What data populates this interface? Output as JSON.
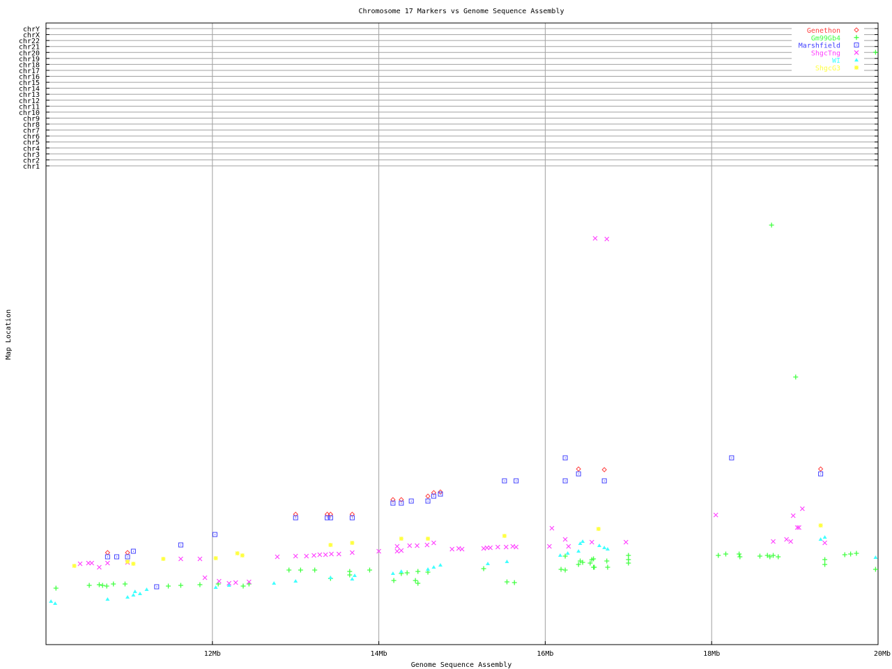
{
  "chart_data": {
    "type": "scatter",
    "title": "Chromosome 17 Markers vs Genome Sequence Assembly",
    "xlabel": "Genome Sequence Assembly",
    "ylabel": "Map Location",
    "xlim": [
      10,
      20
    ],
    "ylim": [
      0,
      892
    ],
    "xticks": [
      {
        "value": 12,
        "label": "12Mb"
      },
      {
        "value": 14,
        "label": "14Mb"
      },
      {
        "value": 16,
        "label": "16Mb"
      },
      {
        "value": 18,
        "label": "18Mb"
      },
      {
        "value": 20,
        "label": "20Mb"
      }
    ],
    "ytick_labels": [
      "chr1",
      "chr2",
      "chr3",
      "chr4",
      "chr5",
      "chr6",
      "chr7",
      "chr8",
      "chr9",
      "chr10",
      "chr11",
      "chr12",
      "chr13",
      "chr14",
      "chr15",
      "chr16",
      "chr17",
      "chr18",
      "chr19",
      "chr20",
      "chr21",
      "chr22",
      "chrX",
      "chrY"
    ],
    "grid": true,
    "legend_position": "top-right",
    "series": [
      {
        "name": "Genethon",
        "color": "#ff4040",
        "marker": "diamond",
        "points": [
          [
            10.74,
            132
          ],
          [
            10.98,
            132
          ],
          [
            13.0,
            187
          ],
          [
            13.38,
            187
          ],
          [
            13.42,
            187
          ],
          [
            13.68,
            187
          ],
          [
            14.17,
            208
          ],
          [
            14.27,
            208
          ],
          [
            14.59,
            213
          ],
          [
            14.66,
            218
          ],
          [
            14.74,
            219
          ],
          [
            16.4,
            252
          ],
          [
            16.71,
            251
          ],
          [
            19.31,
            252
          ]
        ]
      },
      {
        "name": "Gm99Gb4",
        "color": "#40ff40",
        "marker": "plus",
        "points": [
          [
            10.12,
            81
          ],
          [
            10.52,
            85
          ],
          [
            10.64,
            86
          ],
          [
            10.68,
            85
          ],
          [
            10.73,
            84
          ],
          [
            10.81,
            87
          ],
          [
            10.95,
            87
          ],
          [
            11.47,
            84
          ],
          [
            11.62,
            85
          ],
          [
            11.85,
            86
          ],
          [
            12.07,
            87
          ],
          [
            12.37,
            84
          ],
          [
            12.44,
            87
          ],
          [
            12.92,
            107
          ],
          [
            13.06,
            107
          ],
          [
            13.23,
            107
          ],
          [
            13.42,
            95
          ],
          [
            13.65,
            105
          ],
          [
            13.65,
            100
          ],
          [
            13.89,
            107
          ],
          [
            14.18,
            92
          ],
          [
            14.27,
            102
          ],
          [
            14.34,
            103
          ],
          [
            14.47,
            105
          ],
          [
            14.59,
            104
          ],
          [
            14.44,
            92
          ],
          [
            14.47,
            88
          ],
          [
            15.26,
            109
          ],
          [
            15.54,
            90
          ],
          [
            15.63,
            89
          ],
          [
            16.24,
            127
          ],
          [
            16.42,
            120
          ],
          [
            16.45,
            118
          ],
          [
            16.4,
            115
          ],
          [
            16.54,
            117
          ],
          [
            16.56,
            122
          ],
          [
            16.58,
            123
          ],
          [
            16.74,
            120
          ],
          [
            16.58,
            111
          ],
          [
            16.59,
            111
          ],
          [
            16.75,
            111
          ],
          [
            16.19,
            108
          ],
          [
            16.24,
            107
          ],
          [
            17.0,
            128
          ],
          [
            17.0,
            122
          ],
          [
            17.0,
            117
          ],
          [
            18.08,
            128
          ],
          [
            18.17,
            130
          ],
          [
            18.33,
            130
          ],
          [
            18.34,
            126
          ],
          [
            18.58,
            127
          ],
          [
            18.67,
            128
          ],
          [
            18.7,
            126
          ],
          [
            18.74,
            128
          ],
          [
            18.8,
            126
          ],
          [
            19.36,
            122
          ],
          [
            19.36,
            115
          ],
          [
            19.6,
            129
          ],
          [
            19.67,
            130
          ],
          [
            19.74,
            131
          ],
          [
            19.97,
            108
          ],
          [
            18.72,
            602
          ],
          [
            19.01,
            384
          ],
          [
            19.97,
            850
          ]
        ]
      },
      {
        "name": "Marshfield",
        "color": "#4040ff",
        "marker": "square",
        "points": [
          [
            10.74,
            126
          ],
          [
            10.85,
            126
          ],
          [
            10.98,
            126
          ],
          [
            11.05,
            134
          ],
          [
            11.62,
            143
          ],
          [
            11.33,
            83
          ],
          [
            12.03,
            158
          ],
          [
            13.0,
            182
          ],
          [
            13.38,
            182
          ],
          [
            13.42,
            182
          ],
          [
            13.68,
            182
          ],
          [
            14.17,
            203
          ],
          [
            14.27,
            203
          ],
          [
            14.39,
            206
          ],
          [
            14.59,
            206
          ],
          [
            14.66,
            213
          ],
          [
            14.74,
            216
          ],
          [
            15.51,
            235
          ],
          [
            15.65,
            235
          ],
          [
            16.24,
            268
          ],
          [
            16.4,
            245
          ],
          [
            16.24,
            235
          ],
          [
            16.71,
            235
          ],
          [
            18.24,
            268
          ],
          [
            19.31,
            245
          ]
        ]
      },
      {
        "name": "ShgcTng",
        "color": "#ff40ff",
        "marker": "cross",
        "points": [
          [
            10.41,
            116
          ],
          [
            10.51,
            117
          ],
          [
            10.55,
            117
          ],
          [
            10.64,
            111
          ],
          [
            10.74,
            117
          ],
          [
            10.98,
            118
          ],
          [
            11.62,
            123
          ],
          [
            11.85,
            123
          ],
          [
            11.91,
            96
          ],
          [
            12.08,
            91
          ],
          [
            12.2,
            88
          ],
          [
            12.28,
            89
          ],
          [
            12.44,
            90
          ],
          [
            12.78,
            126
          ],
          [
            13.0,
            127
          ],
          [
            13.13,
            127
          ],
          [
            13.22,
            128
          ],
          [
            13.29,
            129
          ],
          [
            13.36,
            129
          ],
          [
            13.43,
            130
          ],
          [
            13.52,
            130
          ],
          [
            13.68,
            132
          ],
          [
            14.0,
            134
          ],
          [
            14.22,
            141
          ],
          [
            14.22,
            134
          ],
          [
            14.27,
            135
          ],
          [
            14.37,
            142
          ],
          [
            14.46,
            142
          ],
          [
            14.58,
            143
          ],
          [
            14.66,
            146
          ],
          [
            14.88,
            137
          ],
          [
            14.96,
            138
          ],
          [
            15.0,
            137
          ],
          [
            15.26,
            138
          ],
          [
            15.3,
            139
          ],
          [
            15.34,
            139
          ],
          [
            15.43,
            140
          ],
          [
            15.53,
            140
          ],
          [
            15.61,
            141
          ],
          [
            15.65,
            140
          ],
          [
            16.05,
            141
          ],
          [
            16.08,
            167
          ],
          [
            16.24,
            151
          ],
          [
            16.28,
            141
          ],
          [
            16.56,
            147
          ],
          [
            16.97,
            147
          ],
          [
            16.6,
            583
          ],
          [
            16.74,
            582
          ],
          [
            18.05,
            186
          ],
          [
            18.74,
            148
          ],
          [
            18.9,
            151
          ],
          [
            18.95,
            148
          ],
          [
            18.98,
            185
          ],
          [
            19.03,
            168
          ],
          [
            19.05,
            168
          ],
          [
            19.09,
            195
          ],
          [
            19.36,
            146
          ]
        ]
      },
      {
        "name": "WI",
        "color": "#40ffff",
        "marker": "triangle",
        "points": [
          [
            10.06,
            62
          ],
          [
            10.11,
            59
          ],
          [
            10.74,
            65
          ],
          [
            10.98,
            68
          ],
          [
            11.05,
            71
          ],
          [
            11.07,
            76
          ],
          [
            11.13,
            73
          ],
          [
            11.21,
            79
          ],
          [
            12.04,
            82
          ],
          [
            12.2,
            85
          ],
          [
            12.74,
            88
          ],
          [
            13.0,
            91
          ],
          [
            13.42,
            96
          ],
          [
            13.71,
            99
          ],
          [
            13.68,
            94
          ],
          [
            14.17,
            102
          ],
          [
            14.27,
            105
          ],
          [
            14.59,
            108
          ],
          [
            14.66,
            111
          ],
          [
            14.74,
            114
          ],
          [
            15.31,
            116
          ],
          [
            15.54,
            119
          ],
          [
            16.18,
            128
          ],
          [
            16.27,
            131
          ],
          [
            16.4,
            134
          ],
          [
            16.42,
            145
          ],
          [
            16.45,
            148
          ],
          [
            16.65,
            142
          ],
          [
            16.71,
            139
          ],
          [
            16.75,
            137
          ],
          [
            19.31,
            151
          ],
          [
            19.36,
            154
          ],
          [
            19.97,
            125
          ]
        ]
      },
      {
        "name": "ShgcG3",
        "color": "#ffff40",
        "marker": "star",
        "points": [
          [
            10.34,
            113
          ],
          [
            10.98,
            119
          ],
          [
            11.05,
            116
          ],
          [
            11.41,
            123
          ],
          [
            12.04,
            124
          ],
          [
            12.3,
            131
          ],
          [
            12.36,
            128
          ],
          [
            13.42,
            143
          ],
          [
            13.68,
            146
          ],
          [
            14.27,
            152
          ],
          [
            14.59,
            152
          ],
          [
            15.51,
            156
          ],
          [
            16.64,
            166
          ],
          [
            19.31,
            171
          ]
        ]
      }
    ]
  }
}
